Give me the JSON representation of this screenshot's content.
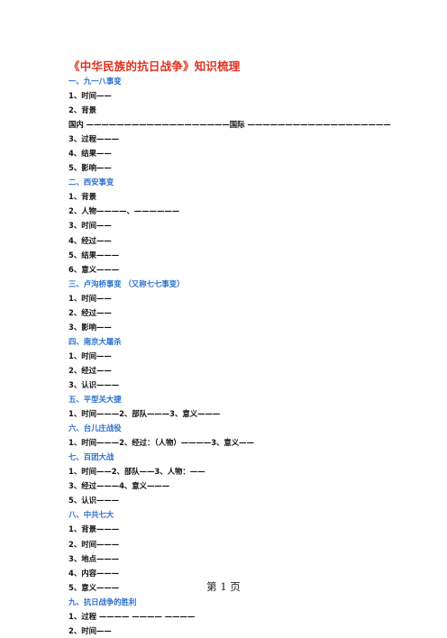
{
  "document": {
    "title": "《中华民族的抗日战争》知识梳理",
    "footer": "第 1 页",
    "lines": [
      {
        "text": "一、九一八事变",
        "heading": true
      },
      {
        "text": "1、时间——",
        "heading": false
      },
      {
        "text": "2、背景",
        "heading": false
      },
      {
        "text": "国内 ———————————————————国际 ———————————————————",
        "heading": false
      },
      {
        "text": "3、过程———",
        "heading": false
      },
      {
        "text": "4、结果——",
        "heading": false
      },
      {
        "text": "5、影响——",
        "heading": false
      },
      {
        "text": "二、西安事变",
        "heading": true
      },
      {
        "text": "1、背景",
        "heading": false
      },
      {
        "text": "2、人物————、——————",
        "heading": false
      },
      {
        "text": "3、时间——",
        "heading": false
      },
      {
        "text": "4、经过——",
        "heading": false
      },
      {
        "text": "5、结果———",
        "heading": false
      },
      {
        "text": "6、意义———",
        "heading": false
      },
      {
        "text": "三、卢沟桥事变 （又称七七事变）",
        "heading": true
      },
      {
        "text": "1、时间——",
        "heading": false
      },
      {
        "text": "2、经过——",
        "heading": false
      },
      {
        "text": "3、影响——",
        "heading": false
      },
      {
        "text": "四、南京大屠杀",
        "heading": true
      },
      {
        "text": "1、时间——",
        "heading": false
      },
      {
        "text": "2、经过——",
        "heading": false
      },
      {
        "text": "3、认识———",
        "heading": false
      },
      {
        "text": "五、平型关大捷",
        "heading": true
      },
      {
        "text": "1、时间———2、部队———3、意义———",
        "heading": false
      },
      {
        "text": "六、台儿庄战役",
        "heading": true
      },
      {
        "text": "1、时间———2、经过：（人物）————3、意义——",
        "heading": false
      },
      {
        "text": "七、百团大战",
        "heading": true
      },
      {
        "text": "1、时间——2、部队——3、人物：——",
        "heading": false
      },
      {
        "text": "3、经过———4、意义———",
        "heading": false
      },
      {
        "text": "5、认识———",
        "heading": false
      },
      {
        "text": "八、中共七大",
        "heading": true
      },
      {
        "text": "1、背景———",
        "heading": false
      },
      {
        "text": "2、时间———",
        "heading": false
      },
      {
        "text": "3、地点———",
        "heading": false
      },
      {
        "text": "4、内容———",
        "heading": false
      },
      {
        "text": "5、意义———",
        "heading": false
      },
      {
        "text": "九、抗日战争的胜利",
        "heading": true
      },
      {
        "text": "1、过程 ————  ————   ————",
        "heading": false
      },
      {
        "text": "2、时间——",
        "heading": false
      }
    ]
  }
}
